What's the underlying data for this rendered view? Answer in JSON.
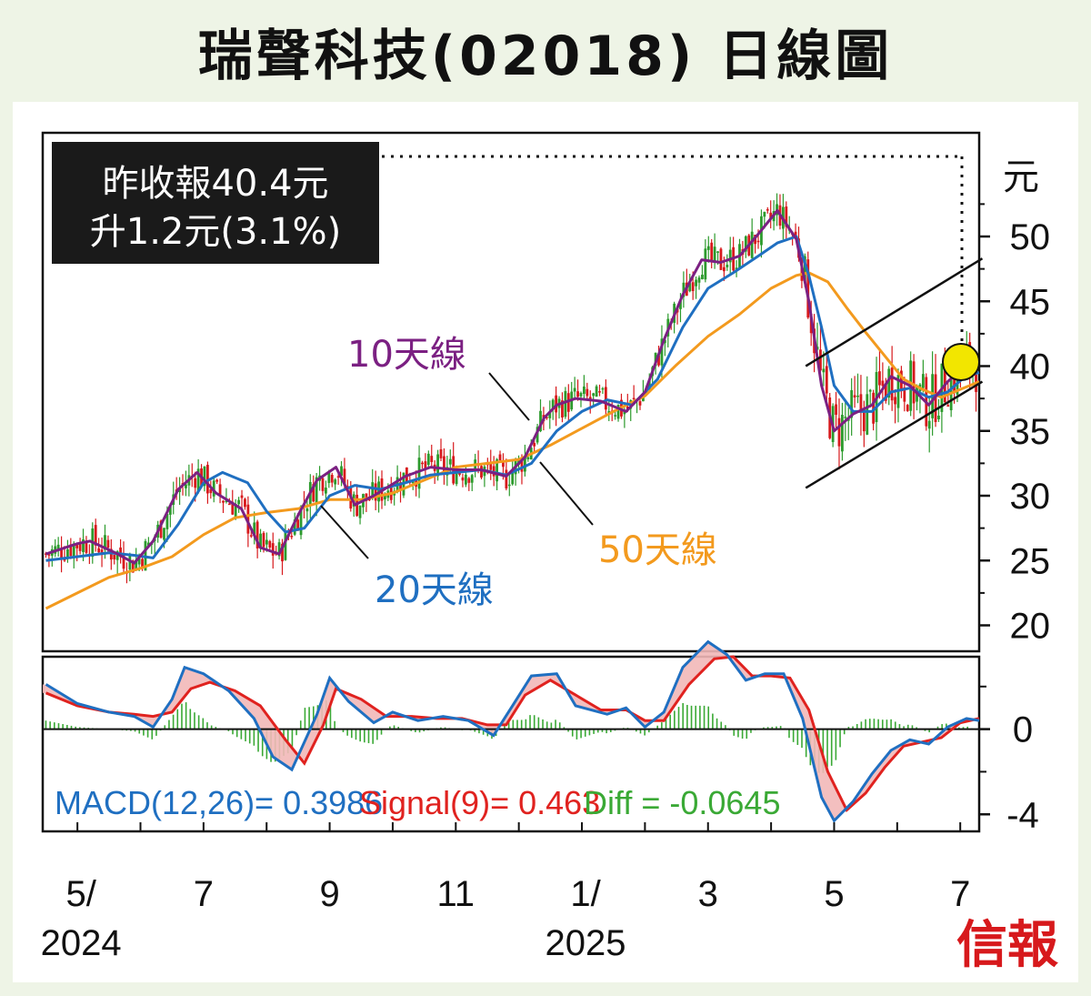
{
  "title": "瑞聲科技(02018) 日線圖",
  "info_box": {
    "line1": "昨收報40.4元",
    "line2": "升1.2元(3.1%)"
  },
  "brand": "信報",
  "colors": {
    "background": "#eef4e6",
    "plot_bg": "#ffffff",
    "up_candle": "#2c9a2c",
    "down_candle": "#d7191c",
    "ma10": "#7b2082",
    "ma20": "#1f6fc1",
    "ma50": "#f39a1e",
    "macd": "#1f6fc1",
    "signal": "#e0221f",
    "diff": "#3aa935",
    "highlight": "#f2e600"
  },
  "chart_data": [
    {
      "type": "candlestick",
      "title": "瑞聲科技(02018) 日線圖",
      "ylabel": "元",
      "ylim": [
        18,
        58
      ],
      "yticks": [
        "20",
        "25",
        "30",
        "35",
        "40",
        "45",
        "50"
      ],
      "x_tick_labels": [
        {
          "label": "5/",
          "sub": "2024"
        },
        {
          "label": "7",
          "sub": ""
        },
        {
          "label": "9",
          "sub": ""
        },
        {
          "label": "11",
          "sub": ""
        },
        {
          "label": "1/",
          "sub": "2025"
        },
        {
          "label": "3",
          "sub": ""
        },
        {
          "label": "5",
          "sub": ""
        },
        {
          "label": "7",
          "sub": ""
        }
      ],
      "x_month_index": [
        0,
        2,
        4,
        6,
        8,
        10,
        12,
        14
      ],
      "x_month_range": [
        -0.55,
        14.3
      ],
      "last_close": 40.4,
      "series": [
        {
          "name": "10天線",
          "color": "#7b2082",
          "points": [
            [
              -0.5,
              25.5
            ],
            [
              0,
              26.3
            ],
            [
              0.2,
              26.5
            ],
            [
              0.6,
              25.6
            ],
            [
              0.9,
              24.8
            ],
            [
              1.2,
              26.5
            ],
            [
              1.6,
              30.5
            ],
            [
              1.9,
              31.8
            ],
            [
              2.2,
              30.2
            ],
            [
              2.6,
              29.0
            ],
            [
              2.9,
              26.0
            ],
            [
              3.2,
              25.5
            ],
            [
              3.5,
              28.5
            ],
            [
              3.8,
              31.2
            ],
            [
              4.1,
              32.2
            ],
            [
              4.4,
              29.3
            ],
            [
              4.7,
              30.0
            ],
            [
              5.2,
              31.5
            ],
            [
              5.6,
              32.2
            ],
            [
              6.0,
              32.0
            ],
            [
              6.4,
              32.0
            ],
            [
              6.8,
              31.5
            ],
            [
              7.1,
              33.0
            ],
            [
              7.4,
              36.0
            ],
            [
              7.6,
              37.0
            ],
            [
              7.9,
              37.5
            ],
            [
              8.3,
              37.3
            ],
            [
              8.7,
              36.5
            ],
            [
              9.0,
              38.0
            ],
            [
              9.3,
              42.0
            ],
            [
              9.6,
              45.5
            ],
            [
              9.9,
              48.2
            ],
            [
              10.2,
              48.0
            ],
            [
              10.5,
              48.5
            ],
            [
              10.8,
              50.2
            ],
            [
              11.1,
              52.0
            ],
            [
              11.4,
              49.8
            ],
            [
              11.6,
              45.0
            ],
            [
              11.8,
              38.5
            ],
            [
              12.0,
              35.0
            ],
            [
              12.3,
              36.3
            ],
            [
              12.6,
              37.0
            ],
            [
              12.9,
              39.2
            ],
            [
              13.2,
              38.5
            ],
            [
              13.5,
              37.0
            ],
            [
              13.8,
              38.8
            ],
            [
              14.1,
              40.1
            ],
            [
              14.3,
              40.0
            ]
          ]
        },
        {
          "name": "20天線",
          "color": "#1f6fc1",
          "points": [
            [
              -0.5,
              25.0
            ],
            [
              0,
              25.3
            ],
            [
              0.5,
              25.6
            ],
            [
              0.9,
              25.4
            ],
            [
              1.2,
              25.2
            ],
            [
              1.6,
              27.8
            ],
            [
              2.0,
              31.0
            ],
            [
              2.3,
              31.8
            ],
            [
              2.7,
              31.0
            ],
            [
              3.0,
              28.8
            ],
            [
              3.3,
              27.2
            ],
            [
              3.6,
              27.5
            ],
            [
              4.0,
              30.0
            ],
            [
              4.4,
              30.8
            ],
            [
              4.8,
              30.5
            ],
            [
              5.2,
              31.0
            ],
            [
              5.6,
              31.6
            ],
            [
              6.0,
              31.8
            ],
            [
              6.4,
              32.0
            ],
            [
              6.8,
              31.6
            ],
            [
              7.2,
              32.5
            ],
            [
              7.6,
              35.0
            ],
            [
              8.0,
              36.5
            ],
            [
              8.4,
              37.4
            ],
            [
              8.8,
              37.0
            ],
            [
              9.2,
              39.0
            ],
            [
              9.6,
              43.0
            ],
            [
              10.0,
              46.0
            ],
            [
              10.4,
              47.2
            ],
            [
              10.8,
              48.5
            ],
            [
              11.1,
              49.5
            ],
            [
              11.4,
              50.0
            ],
            [
              11.6,
              47.0
            ],
            [
              11.8,
              43.0
            ],
            [
              12.0,
              38.5
            ],
            [
              12.3,
              36.5
            ],
            [
              12.6,
              36.5
            ],
            [
              12.9,
              38.0
            ],
            [
              13.2,
              38.3
            ],
            [
              13.5,
              37.6
            ],
            [
              13.8,
              38.0
            ],
            [
              14.1,
              39.3
            ],
            [
              14.3,
              39.5
            ]
          ]
        },
        {
          "name": "50天線",
          "color": "#f39a1e",
          "points": [
            [
              -0.5,
              21.3
            ],
            [
              0,
              22.5
            ],
            [
              0.5,
              23.7
            ],
            [
              1.0,
              24.4
            ],
            [
              1.5,
              25.3
            ],
            [
              2.0,
              27.0
            ],
            [
              2.5,
              28.3
            ],
            [
              3.0,
              28.7
            ],
            [
              3.5,
              29.0
            ],
            [
              4.0,
              29.7
            ],
            [
              4.5,
              29.7
            ],
            [
              5.0,
              30.2
            ],
            [
              5.5,
              31.2
            ],
            [
              6.0,
              32.2
            ],
            [
              6.5,
              32.5
            ],
            [
              7.0,
              32.8
            ],
            [
              7.5,
              33.9
            ],
            [
              8.0,
              35.2
            ],
            [
              8.5,
              36.5
            ],
            [
              9.0,
              37.7
            ],
            [
              9.5,
              40.1
            ],
            [
              10.0,
              42.3
            ],
            [
              10.5,
              44.0
            ],
            [
              11.0,
              46.0
            ],
            [
              11.4,
              47.0
            ],
            [
              11.6,
              47.2
            ],
            [
              11.9,
              46.5
            ],
            [
              12.2,
              44.5
            ],
            [
              12.5,
              42.6
            ],
            [
              12.8,
              40.8
            ],
            [
              13.1,
              39.0
            ],
            [
              13.4,
              38.2
            ],
            [
              13.7,
              37.6
            ],
            [
              14.0,
              38.2
            ],
            [
              14.3,
              38.8
            ]
          ]
        }
      ],
      "annotations": [
        {
          "text": "10天線",
          "color": "#7b2082"
        },
        {
          "text": "20天線",
          "color": "#1f6fc1"
        },
        {
          "text": "50天線",
          "color": "#f39a1e"
        }
      ],
      "channel": {
        "upper": [
          [
            11.55,
            40.0
          ],
          [
            14.35,
            48.3
          ]
        ],
        "lower": [
          [
            11.55,
            30.6
          ],
          [
            14.35,
            38.8
          ]
        ]
      }
    },
    {
      "type": "line",
      "title": "MACD",
      "ylim": [
        -4.8,
        3.4
      ],
      "yticks": [
        "0",
        "-4"
      ],
      "labels": {
        "macd": "MACD(12,26)= 0.3986",
        "signal": "Signal(9)= 0.463",
        "diff": "Diff = -0.0645"
      },
      "series": [
        {
          "name": "MACD(12,26)",
          "color": "#1f6fc1",
          "points": [
            [
              -0.5,
              2.1
            ],
            [
              0,
              1.2
            ],
            [
              0.5,
              0.8
            ],
            [
              0.9,
              0.6
            ],
            [
              1.2,
              0.1
            ],
            [
              1.5,
              1.4
            ],
            [
              1.7,
              2.9
            ],
            [
              2.0,
              2.6
            ],
            [
              2.4,
              1.8
            ],
            [
              2.8,
              0.5
            ],
            [
              3.1,
              -1.3
            ],
            [
              3.4,
              -1.9
            ],
            [
              3.8,
              0.7
            ],
            [
              4.0,
              2.4
            ],
            [
              4.3,
              1.3
            ],
            [
              4.7,
              0.3
            ],
            [
              5.0,
              0.8
            ],
            [
              5.4,
              0.4
            ],
            [
              5.8,
              0.6
            ],
            [
              6.2,
              0.4
            ],
            [
              6.6,
              -0.3
            ],
            [
              6.9,
              1.1
            ],
            [
              7.2,
              2.5
            ],
            [
              7.6,
              2.6
            ],
            [
              7.9,
              1.1
            ],
            [
              8.4,
              0.7
            ],
            [
              8.7,
              1.0
            ],
            [
              9.0,
              0.1
            ],
            [
              9.3,
              0.8
            ],
            [
              9.6,
              2.9
            ],
            [
              10.0,
              4.1
            ],
            [
              10.3,
              3.5
            ],
            [
              10.6,
              2.3
            ],
            [
              10.9,
              2.6
            ],
            [
              11.2,
              2.6
            ],
            [
              11.5,
              0.5
            ],
            [
              11.8,
              -3.2
            ],
            [
              12.0,
              -4.3
            ],
            [
              12.3,
              -3.4
            ],
            [
              12.6,
              -2.1
            ],
            [
              12.9,
              -1.0
            ],
            [
              13.2,
              -0.5
            ],
            [
              13.5,
              -0.7
            ],
            [
              13.8,
              0.1
            ],
            [
              14.1,
              0.5
            ],
            [
              14.3,
              0.4
            ]
          ]
        },
        {
          "name": "Signal(9)",
          "color": "#e0221f",
          "points": [
            [
              -0.5,
              1.7
            ],
            [
              0,
              1.1
            ],
            [
              0.5,
              0.8
            ],
            [
              0.9,
              0.7
            ],
            [
              1.2,
              0.6
            ],
            [
              1.5,
              0.8
            ],
            [
              1.8,
              1.9
            ],
            [
              2.1,
              2.2
            ],
            [
              2.5,
              1.8
            ],
            [
              2.9,
              1.1
            ],
            [
              3.3,
              -0.5
            ],
            [
              3.6,
              -1.6
            ],
            [
              3.9,
              0.2
            ],
            [
              4.1,
              1.9
            ],
            [
              4.5,
              1.4
            ],
            [
              4.9,
              0.6
            ],
            [
              5.3,
              0.6
            ],
            [
              5.7,
              0.5
            ],
            [
              6.1,
              0.5
            ],
            [
              6.5,
              0.2
            ],
            [
              6.8,
              0.2
            ],
            [
              7.1,
              1.6
            ],
            [
              7.5,
              2.3
            ],
            [
              7.9,
              1.6
            ],
            [
              8.3,
              0.9
            ],
            [
              8.7,
              0.9
            ],
            [
              9.0,
              0.4
            ],
            [
              9.3,
              0.4
            ],
            [
              9.7,
              2.1
            ],
            [
              10.1,
              3.3
            ],
            [
              10.4,
              3.4
            ],
            [
              10.7,
              2.5
            ],
            [
              11.0,
              2.5
            ],
            [
              11.3,
              2.4
            ],
            [
              11.6,
              0.9
            ],
            [
              11.9,
              -2.0
            ],
            [
              12.2,
              -3.8
            ],
            [
              12.5,
              -3.0
            ],
            [
              12.8,
              -1.8
            ],
            [
              13.1,
              -0.8
            ],
            [
              13.4,
              -0.6
            ],
            [
              13.7,
              -0.4
            ],
            [
              14.0,
              0.3
            ],
            [
              14.3,
              0.5
            ]
          ]
        }
      ]
    }
  ]
}
